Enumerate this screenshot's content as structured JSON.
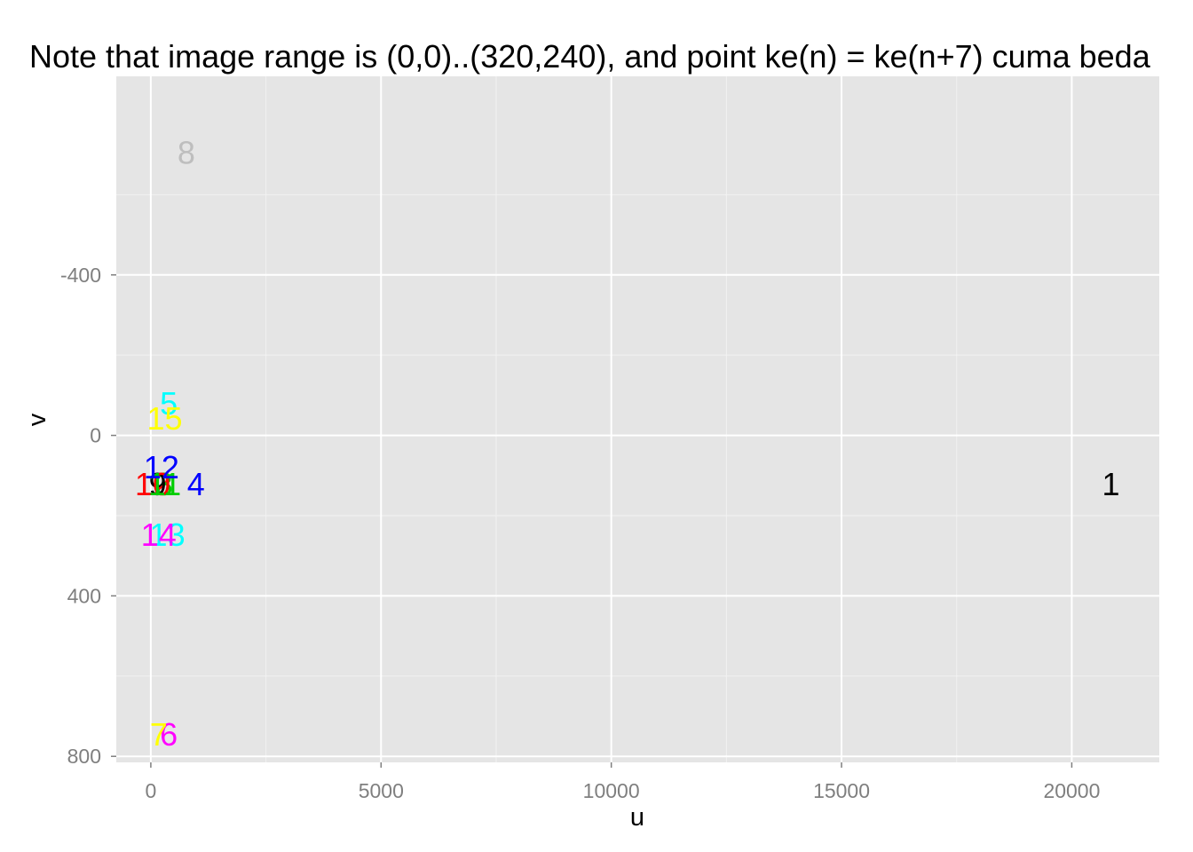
{
  "chart_data": {
    "type": "scatter",
    "title": "Note that image range is (0,0)..(320,240), and point ke(n) = ke(n+7) cuma beda",
    "xlabel": "u",
    "ylabel": "v",
    "x_range": [
      -750,
      21900
    ],
    "y_range": [
      -895,
      815
    ],
    "y_reversed": true,
    "grid": true,
    "legend": "none",
    "x_ticks": [
      {
        "value": 0,
        "label": "0"
      },
      {
        "value": 5000,
        "label": "5000"
      },
      {
        "value": 10000,
        "label": "10000"
      },
      {
        "value": 15000,
        "label": "15000"
      },
      {
        "value": 20000,
        "label": "20000"
      }
    ],
    "x_minor_ticks": [
      2500,
      7500,
      12500,
      17500
    ],
    "y_ticks": [
      {
        "value": -400,
        "label": "-400"
      },
      {
        "value": 0,
        "label": "0"
      },
      {
        "value": 400,
        "label": "400"
      },
      {
        "value": 800,
        "label": "800"
      }
    ],
    "y_minor_ticks": [
      -600,
      -200,
      200,
      600
    ],
    "points": [
      {
        "label": "1",
        "x": 20850,
        "y": 122,
        "color": "#000000"
      },
      {
        "label": "2",
        "x": 240,
        "y": 122,
        "color": "#ff0000"
      },
      {
        "label": "3",
        "x": 290,
        "y": 122,
        "color": "#00cd00"
      },
      {
        "label": "4",
        "x": 980,
        "y": 122,
        "color": "#0000ff"
      },
      {
        "label": "5",
        "x": 390,
        "y": -80,
        "color": "#00ffff"
      },
      {
        "label": "6",
        "x": 390,
        "y": 745,
        "color": "#ff00ff"
      },
      {
        "label": "7",
        "x": 170,
        "y": 745,
        "color": "#ffff00"
      },
      {
        "label": "8",
        "x": 770,
        "y": -705,
        "color": "#bebebe"
      },
      {
        "label": "9",
        "x": 150,
        "y": 122,
        "color": "#000000"
      },
      {
        "label": "10",
        "x": 40,
        "y": 122,
        "color": "#ff0000"
      },
      {
        "label": "11",
        "x": 300,
        "y": 122,
        "color": "#00cd00"
      },
      {
        "label": "12",
        "x": 230,
        "y": 80,
        "color": "#0000ff"
      },
      {
        "label": "13",
        "x": 360,
        "y": 248,
        "color": "#00ffff"
      },
      {
        "label": "14",
        "x": 170,
        "y": 248,
        "color": "#ff00ff"
      },
      {
        "label": "15",
        "x": 300,
        "y": -42,
        "color": "#ffff00"
      }
    ]
  },
  "colors": {
    "panel_background": "#e5e5e5",
    "grid_major": "#ffffff",
    "grid_minor": "#f2f2f2",
    "tick_text": "#7f7f7f"
  }
}
